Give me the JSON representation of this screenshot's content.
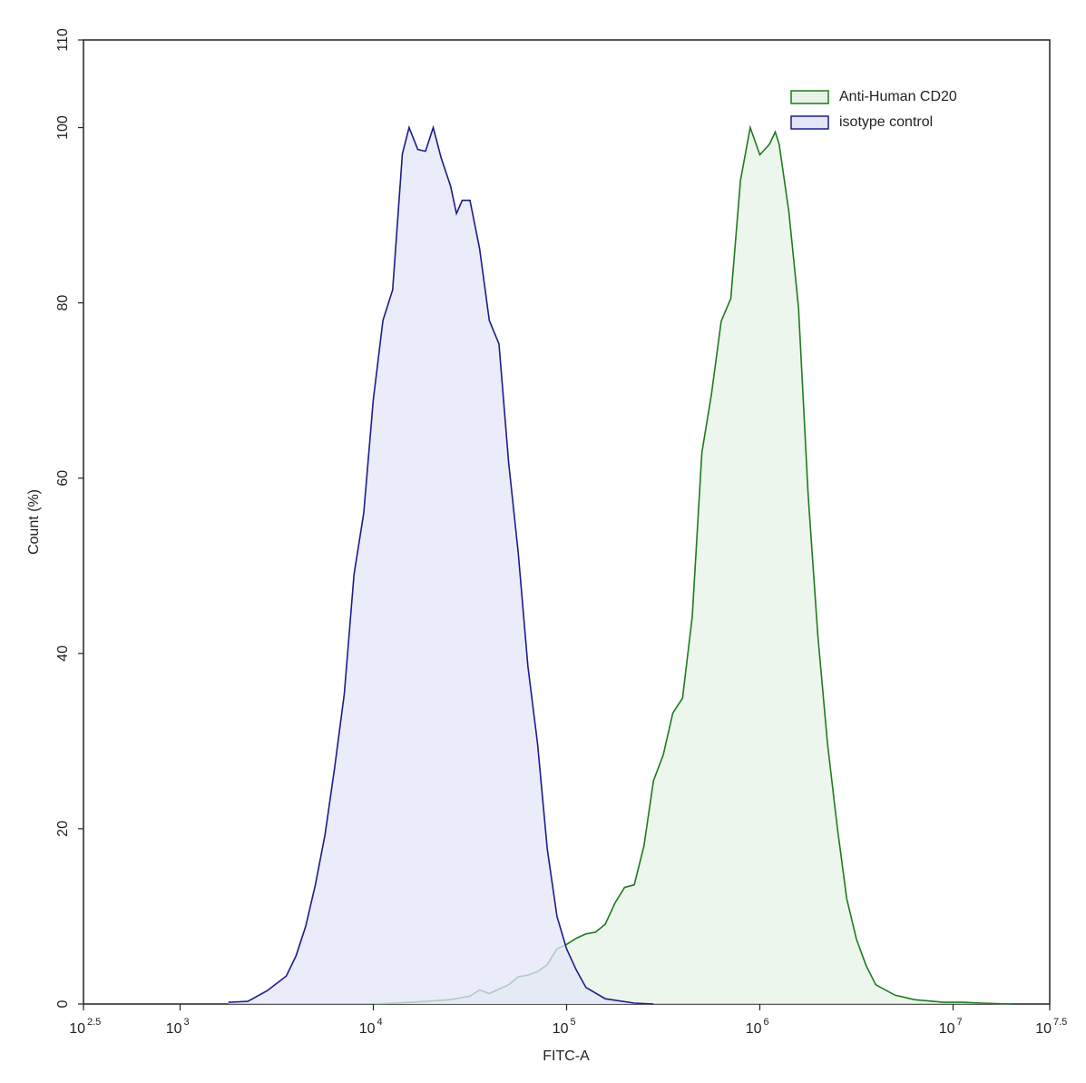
{
  "chart_data": {
    "type": "area",
    "xlabel": "FITC-A",
    "ylabel": "Count  (%)",
    "xscale": "log",
    "xlim": [
      316.23,
      31622777
    ],
    "ylim": [
      0,
      110
    ],
    "xticks": [
      {
        "value": 316.23,
        "label": "10",
        "exponent": "2.5"
      },
      {
        "value": 1000,
        "label": "10",
        "exponent": "3"
      },
      {
        "value": 10000,
        "label": "10",
        "exponent": "4"
      },
      {
        "value": 100000,
        "label": "10",
        "exponent": "5"
      },
      {
        "value": 1000000,
        "label": "10",
        "exponent": "6"
      },
      {
        "value": 10000000,
        "label": "10",
        "exponent": "7"
      },
      {
        "value": 31622777,
        "label": "10",
        "exponent": "7.5"
      }
    ],
    "yticks": [
      0,
      20,
      40,
      60,
      80,
      100,
      110
    ],
    "legend": "upper right",
    "series": [
      {
        "name": "Anti-Human CD20",
        "color": "#1f7a1f",
        "fill": "#e6f3e6",
        "x": [
          10000,
          15850,
          25120,
          31620,
          35480,
          39810,
          50120,
          56230,
          63100,
          70790,
          79430,
          89130,
          100000,
          112200,
          125900,
          141300,
          158500,
          177800,
          199500,
          223900,
          251200,
          281800,
          316200,
          354800,
          398100,
          446700,
          501200,
          562300,
          631000,
          707900,
          794300,
          891300,
          1000000,
          1122000,
          1202000,
          1259000,
          1413000,
          1585000,
          1778000,
          1995000,
          2239000,
          2512000,
          2818000,
          3162000,
          3548000,
          3981000,
          5012000,
          6310000,
          7943000,
          8913000,
          11220000,
          14130000,
          19950000
        ],
        "values": [
          0,
          0.2,
          0.5,
          0.9,
          1.6,
          1.2,
          2.2,
          3.1,
          3.3,
          3.7,
          4.5,
          6.3,
          6.8,
          7.5,
          8.0,
          8.2,
          9.1,
          11.5,
          13.3,
          13.6,
          18,
          25.5,
          28.4,
          33.2,
          34.9,
          44.2,
          62.9,
          69.6,
          77.9,
          80.5,
          94,
          100,
          96.9,
          98.1,
          99.5,
          98.1,
          90.4,
          79.5,
          58.2,
          42.1,
          29.7,
          20.3,
          12.0,
          7.4,
          4.4,
          2.2,
          1.0,
          0.5,
          0.3,
          0.2,
          0.2,
          0.1,
          0
        ]
      },
      {
        "name": "isotype control",
        "color": "#1c1c8a",
        "fill": "#e3e5f8",
        "x": [
          1778,
          2239,
          2818,
          3548,
          3981,
          4467,
          5012,
          5623,
          6310,
          7079,
          7943,
          8913,
          10000,
          11220,
          12590,
          14130,
          15310,
          16980,
          18620,
          20420,
          22390,
          25120,
          26920,
          28840,
          31620,
          35480,
          39810,
          44670,
          50120,
          56230,
          63100,
          70790,
          79430,
          89130,
          100000,
          112200,
          125900,
          158500,
          223900,
          281800
        ],
        "values": [
          0.2,
          0.3,
          1.5,
          3.2,
          5.5,
          8.9,
          13.6,
          19.3,
          27,
          35.4,
          49,
          56,
          69,
          78,
          81.5,
          97,
          100,
          97.5,
          97.3,
          100,
          96.6,
          93.3,
          90.2,
          91.7,
          91.7,
          86.2,
          78,
          75.3,
          61.8,
          51.5,
          38.5,
          29.7,
          17.7,
          10,
          6.3,
          3.9,
          1.9,
          0.6,
          0.1,
          0
        ]
      }
    ]
  }
}
